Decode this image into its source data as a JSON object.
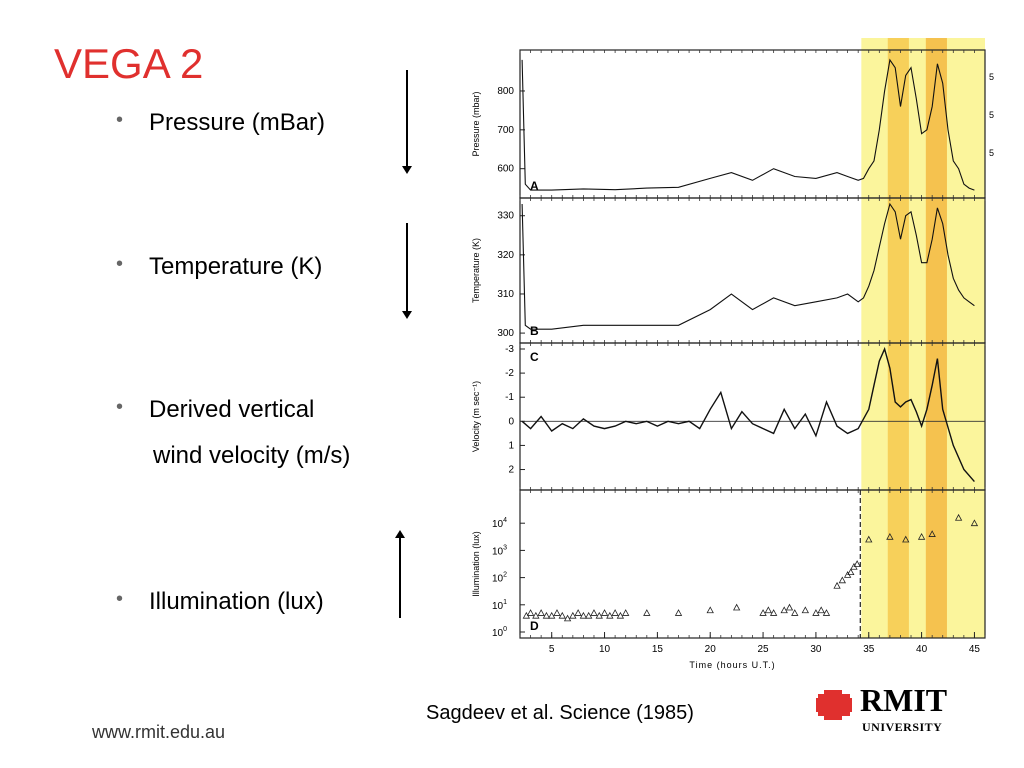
{
  "slide": {
    "title": "VEGA 2",
    "bullets": [
      {
        "line1": "Pressure (mBar)",
        "line2": ""
      },
      {
        "line1": "Temperature (K)",
        "line2": ""
      },
      {
        "line1": "Derived vertical",
        "line2": "wind velocity (m/s)"
      },
      {
        "line1": "Illumination (lux)",
        "line2": ""
      }
    ],
    "bullet_glyph": "•",
    "citation": "Sagdeev et al. Science (1985)",
    "footer_url": "www.rmit.edu.au",
    "logo": {
      "name": "RMIT",
      "sub": "UNIVERSITY",
      "mark_icon": "rmit-pixel-logo-icon",
      "color": "#e0302e"
    },
    "title_color": "#e0302e"
  },
  "chart_data": [
    {
      "type": "line",
      "panel": "A",
      "ylabel": "Pressure (mbar)",
      "yticks": [
        600,
        700,
        800
      ],
      "ylim": [
        890,
        540
      ],
      "x": [
        2.2,
        2.5,
        3,
        5,
        8,
        11,
        14,
        17,
        20,
        22,
        24,
        26,
        28,
        30,
        32,
        33,
        34,
        34.5,
        35,
        35.5,
        36,
        36.5,
        37,
        37.5,
        38,
        38.5,
        39,
        39.5,
        40,
        40.5,
        41,
        41.5,
        42,
        42.5,
        43,
        43.5,
        44,
        44.5,
        45
      ],
      "series": [
        {
          "values": [
            880,
            560,
            545,
            545,
            548,
            546,
            550,
            552,
            575,
            590,
            570,
            600,
            580,
            575,
            590,
            580,
            570,
            575,
            600,
            620,
            700,
            800,
            880,
            860,
            760,
            840,
            860,
            780,
            690,
            700,
            760,
            870,
            820,
            700,
            620,
            600,
            560,
            550,
            545
          ]
        }
      ],
      "xlim": [
        2,
        46
      ]
    },
    {
      "type": "line",
      "panel": "B",
      "ylabel": "Temperature (K)",
      "yticks": [
        300,
        310,
        320,
        330
      ],
      "ylim": [
        333,
        299
      ],
      "x": [
        2.2,
        2.5,
        3,
        5,
        8,
        11,
        14,
        17,
        20,
        22,
        24,
        26,
        28,
        30,
        32,
        33,
        34,
        34.5,
        35,
        35.5,
        36,
        36.5,
        37,
        37.5,
        38,
        38.5,
        39,
        39.5,
        40,
        40.5,
        41,
        41.5,
        42,
        42.5,
        43,
        43.5,
        44,
        44.5,
        45
      ],
      "series": [
        {
          "values": [
            333,
            302,
            301,
            301,
            302,
            302,
            302,
            302,
            306,
            310,
            306,
            309,
            307,
            308,
            309,
            310,
            308,
            309,
            312,
            316,
            322,
            328,
            333,
            331,
            324,
            330,
            331,
            325,
            318,
            318,
            324,
            332,
            328,
            320,
            314,
            311,
            309,
            308,
            307
          ]
        }
      ],
      "xlim": [
        2,
        46
      ]
    },
    {
      "type": "line",
      "panel": "C",
      "ylabel": "Velocity (m sec⁻¹)",
      "yticks": [
        2,
        1,
        0,
        -1,
        -2,
        -3
      ],
      "ylim": [
        -3,
        2.6
      ],
      "x": [
        2.2,
        3,
        4,
        5,
        6,
        7,
        8,
        9,
        10,
        11,
        12,
        13,
        14,
        15,
        16,
        17,
        18,
        19,
        20,
        21,
        22,
        23,
        24,
        25,
        26,
        27,
        28,
        29,
        30,
        31,
        32,
        33,
        34,
        35,
        35.5,
        36,
        36.5,
        37,
        37.5,
        38,
        38.5,
        39,
        39.5,
        40,
        40.5,
        41,
        41.5,
        42,
        43,
        44,
        45
      ],
      "series": [
        {
          "values": [
            0,
            0.3,
            -0.2,
            0.4,
            0.1,
            0.3,
            -0.1,
            0.2,
            0.3,
            0.2,
            0,
            0.1,
            0,
            0.2,
            0,
            0.1,
            0,
            0.3,
            -0.5,
            -1.2,
            0.3,
            -0.4,
            0.1,
            0.3,
            0.5,
            -0.5,
            0.3,
            -0.3,
            0.6,
            -0.8,
            0.2,
            0.5,
            0.3,
            -0.5,
            -1.5,
            -2.5,
            -3,
            -2.2,
            -0.8,
            -0.6,
            -0.8,
            -0.9,
            -0.4,
            0.2,
            -0.5,
            -1.5,
            -2.6,
            -0.5,
            1,
            2,
            2.5
          ]
        }
      ],
      "xlim": [
        2,
        46
      ]
    },
    {
      "type": "scatter",
      "panel": "D",
      "ylabel": "Illumination (lux)",
      "yticks": [
        "10^0",
        "10^1",
        "10^2",
        "10^3",
        "10^4"
      ],
      "ylim": [
        0,
        5
      ],
      "xlabel": "Time (hours U.T.)",
      "xticks": [
        5,
        10,
        15,
        20,
        25,
        30,
        35,
        40,
        45
      ],
      "x": [
        2.6,
        3,
        3.5,
        4,
        4.5,
        5,
        5.5,
        6,
        6.5,
        7,
        7.5,
        8,
        8.5,
        9,
        9.5,
        10,
        10.5,
        11,
        11.5,
        12,
        14,
        17,
        20,
        22.5,
        25,
        25.5,
        26,
        27,
        27.5,
        28,
        29,
        30,
        30.5,
        31,
        32,
        32.5,
        33,
        33.3,
        33.6,
        33.9,
        35,
        37,
        38.5,
        40,
        41,
        43.5,
        45
      ],
      "series": [
        {
          "values": [
            0.6,
            0.7,
            0.6,
            0.7,
            0.6,
            0.6,
            0.7,
            0.6,
            0.5,
            0.6,
            0.7,
            0.6,
            0.6,
            0.7,
            0.6,
            0.7,
            0.6,
            0.7,
            0.6,
            0.7,
            0.7,
            0.7,
            0.8,
            0.9,
            0.7,
            0.8,
            0.7,
            0.8,
            0.9,
            0.7,
            0.8,
            0.7,
            0.8,
            0.7,
            1.7,
            1.9,
            2.1,
            2.2,
            2.4,
            2.5,
            3.4,
            3.5,
            3.4,
            3.5,
            3.6,
            4.2,
            4.0
          ]
        }
      ],
      "xlim": [
        2,
        46
      ]
    }
  ],
  "highlight": {
    "outer": {
      "x_range": [
        34.3,
        46
      ],
      "color": "#fbf59c"
    },
    "inner": [
      {
        "x_range": [
          36.8,
          38.8
        ],
        "color": "#f7d05a"
      },
      {
        "x_range": [
          40.4,
          42.4
        ],
        "color": "#f5c24f"
      }
    ],
    "dashed_line_x": 34.2,
    "right_edge_ticks_panel_A": [
      "5",
      "5",
      "5"
    ]
  }
}
